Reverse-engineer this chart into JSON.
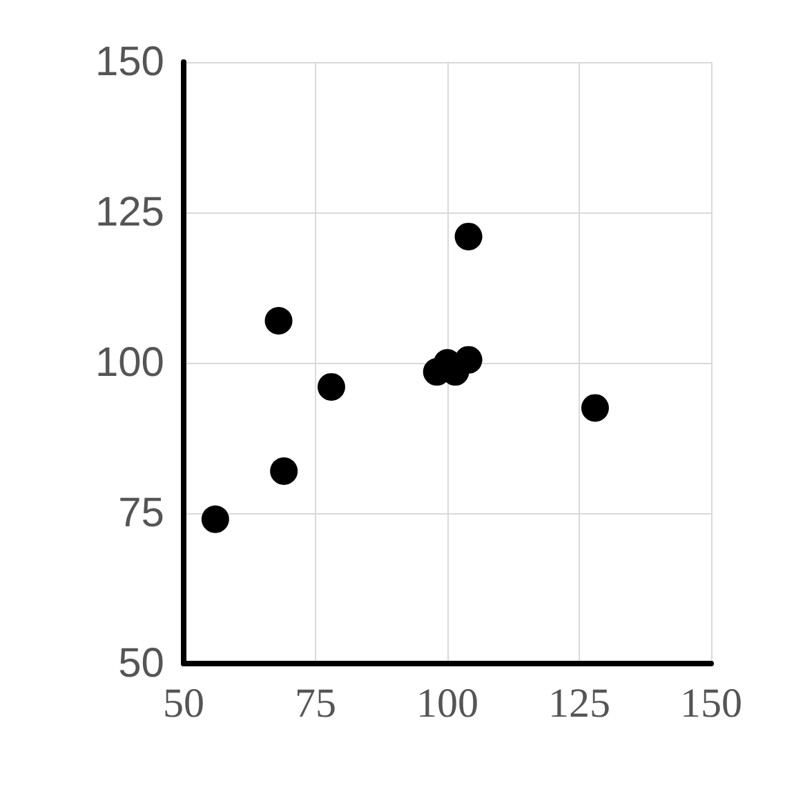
{
  "chart_data": {
    "type": "scatter",
    "x": [
      56,
      68,
      69,
      78,
      98,
      100,
      101.5,
      104,
      104,
      128
    ],
    "series": [
      {
        "color": "#000000",
        "values": [
          74,
          107,
          82,
          96,
          98.5,
          100,
          98.5,
          100.5,
          121,
          92.5
        ]
      }
    ],
    "xlim": [
      50,
      150
    ],
    "xticks": [
      50,
      75,
      100,
      125,
      150
    ],
    "ylim": [
      50,
      150
    ],
    "yticks": [
      50,
      75,
      100,
      125,
      150
    ],
    "grid": true,
    "marker": "circle"
  }
}
